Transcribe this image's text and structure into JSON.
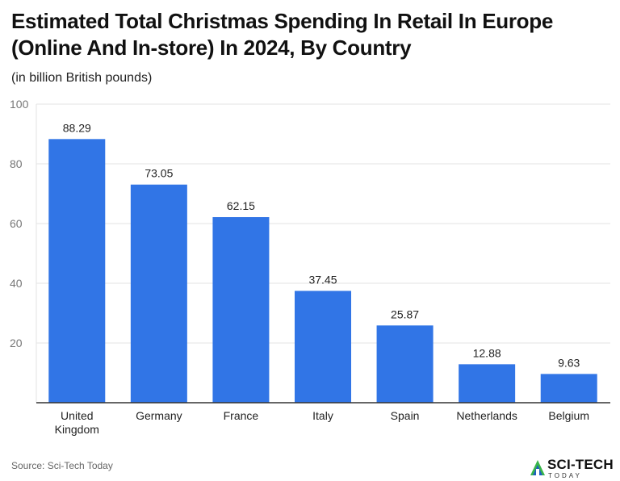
{
  "header": {
    "title": "Estimated Total Christmas Spending In Retail In Europe (Online And In-store) In 2024, By Country",
    "subtitle": "(in billion British pounds)"
  },
  "footer": {
    "source": "Source: Sci-Tech Today",
    "brand_name": "SCI-TECH",
    "brand_tag": "TODAY"
  },
  "colors": {
    "bar": "#3175e6",
    "grid": "#e3e3e3",
    "axis": "#333333",
    "tick_label": "#777777",
    "logo_green": "#39b54a",
    "logo_blue": "#1f5fbf"
  },
  "chart_data": {
    "type": "bar",
    "title": "Estimated Total Christmas Spending In Retail In Europe (Online And In-store) In 2024, By Country",
    "subtitle": "(in billion British pounds)",
    "categories": [
      "United Kingdom",
      "Germany",
      "France",
      "Italy",
      "Spain",
      "Netherlands",
      "Belgium"
    ],
    "category_label_lines": [
      [
        "United",
        "Kingdom"
      ],
      [
        "Germany"
      ],
      [
        "France"
      ],
      [
        "Italy"
      ],
      [
        "Spain"
      ],
      [
        "Netherlands"
      ],
      [
        "Belgium"
      ]
    ],
    "values": [
      88.29,
      73.05,
      62.15,
      37.45,
      25.87,
      12.88,
      9.63
    ],
    "data_labels": [
      "88.29",
      "73.05",
      "62.15",
      "37.45",
      "25.87",
      "12.88",
      "9.63"
    ],
    "ylim": [
      0,
      100
    ],
    "yticks": [
      20,
      40,
      60,
      80,
      100
    ],
    "grid": true,
    "legend": "none",
    "xlabel": "",
    "ylabel": ""
  }
}
